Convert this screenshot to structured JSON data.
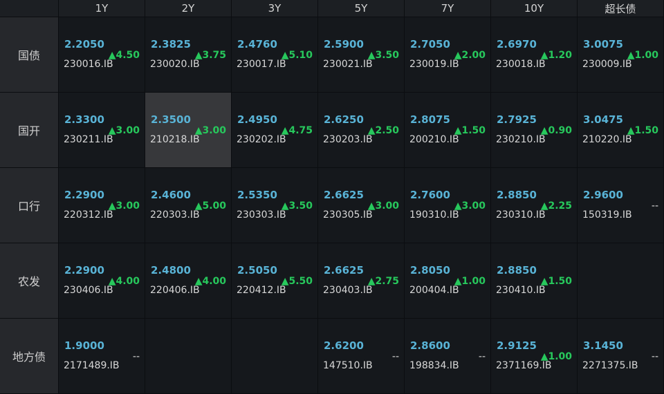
{
  "table": {
    "columns": [
      "1Y",
      "2Y",
      "3Y",
      "5Y",
      "7Y",
      "10Y",
      "超长债"
    ],
    "rows": [
      {
        "label": "国债",
        "cells": [
          {
            "yield": "2.2050",
            "change": "▲4.50",
            "code": "230016.IB"
          },
          {
            "yield": "2.3825",
            "change": "▲3.75",
            "code": "230020.IB"
          },
          {
            "yield": "2.4760",
            "change": "▲5.10",
            "code": "230017.IB"
          },
          {
            "yield": "2.5900",
            "change": "▲3.50",
            "code": "230021.IB"
          },
          {
            "yield": "2.7050",
            "change": "▲2.00",
            "code": "230019.IB"
          },
          {
            "yield": "2.6970",
            "change": "▲1.20",
            "code": "230018.IB"
          },
          {
            "yield": "3.0075",
            "change": "▲1.00",
            "code": "230009.IB"
          }
        ]
      },
      {
        "label": "国开",
        "cells": [
          {
            "yield": "2.3300",
            "change": "▲3.00",
            "code": "230211.IB"
          },
          {
            "yield": "2.3500",
            "change": "▲3.00",
            "code": "210218.IB"
          },
          {
            "yield": "2.4950",
            "change": "▲4.75",
            "code": "230202.IB"
          },
          {
            "yield": "2.6250",
            "change": "▲2.50",
            "code": "230203.IB"
          },
          {
            "yield": "2.8075",
            "change": "▲1.50",
            "code": "200210.IB"
          },
          {
            "yield": "2.7925",
            "change": "▲0.90",
            "code": "230210.IB"
          },
          {
            "yield": "3.0475",
            "change": "▲1.50",
            "code": "210220.IB"
          }
        ]
      },
      {
        "label": "口行",
        "cells": [
          {
            "yield": "2.2900",
            "change": "▲3.00",
            "code": "220312.IB"
          },
          {
            "yield": "2.4600",
            "change": "▲5.00",
            "code": "220303.IB"
          },
          {
            "yield": "2.5350",
            "change": "▲3.50",
            "code": "230303.IB"
          },
          {
            "yield": "2.6625",
            "change": "▲3.00",
            "code": "230305.IB"
          },
          {
            "yield": "2.7600",
            "change": "▲3.00",
            "code": "190310.IB"
          },
          {
            "yield": "2.8850",
            "change": "▲2.25",
            "code": "230310.IB"
          },
          {
            "yield": "2.9600",
            "change": "--",
            "code": "150319.IB"
          }
        ]
      },
      {
        "label": "农发",
        "cells": [
          {
            "yield": "2.2900",
            "change": "▲4.00",
            "code": "230406.IB"
          },
          {
            "yield": "2.4800",
            "change": "▲4.00",
            "code": "220406.IB"
          },
          {
            "yield": "2.5050",
            "change": "▲5.50",
            "code": "220412.IB"
          },
          {
            "yield": "2.6625",
            "change": "▲2.75",
            "code": "230403.IB"
          },
          {
            "yield": "2.8050",
            "change": "▲1.00",
            "code": "200404.IB"
          },
          {
            "yield": "2.8850",
            "change": "▲1.50",
            "code": "230410.IB"
          },
          null
        ]
      },
      {
        "label": "地方债",
        "cells": [
          {
            "yield": "1.9000",
            "change": "--",
            "code": "2171489.IB"
          },
          null,
          null,
          {
            "yield": "2.6200",
            "change": "--",
            "code": "147510.IB"
          },
          {
            "yield": "2.8600",
            "change": "--",
            "code": "198834.IB"
          },
          {
            "yield": "2.9125",
            "change": "▲1.00",
            "code": "2371169.IB"
          },
          {
            "yield": "3.1450",
            "change": "--",
            "code": "2271375.IB"
          }
        ]
      }
    ]
  }
}
